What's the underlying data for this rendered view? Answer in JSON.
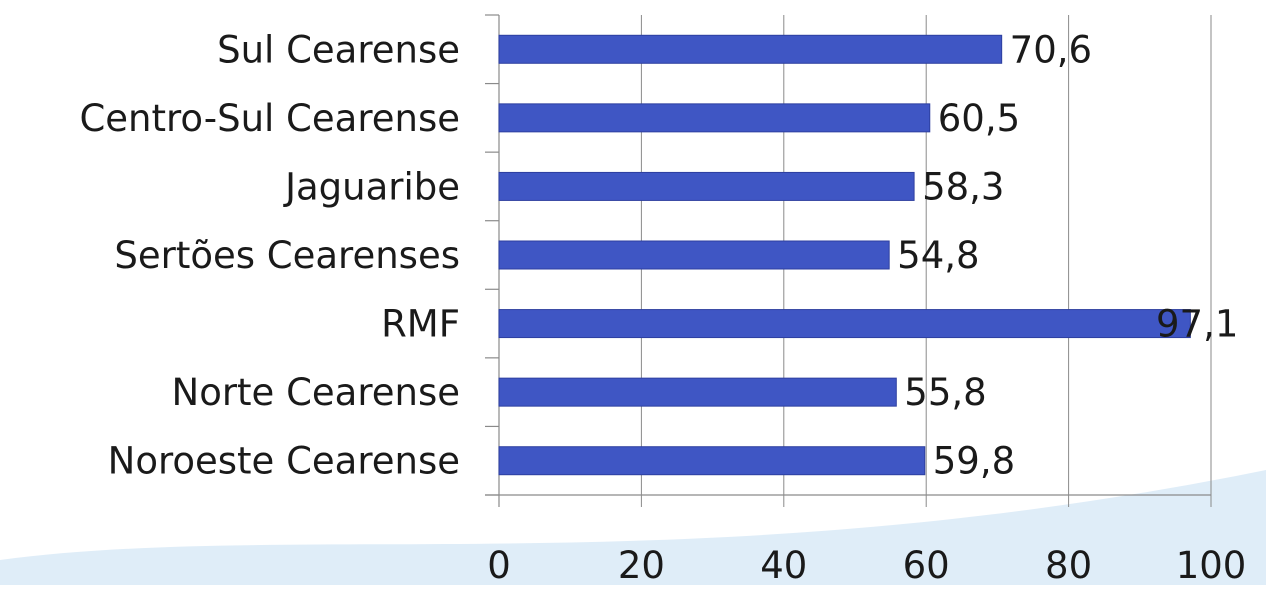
{
  "chart_data": {
    "type": "bar",
    "orientation": "horizontal",
    "categories": [
      "Sul Cearense",
      "Centro-Sul Cearense",
      "Jaguaribe",
      "Sertões Cearenses",
      "RMF",
      "Norte Cearense",
      "Noroeste Cearense"
    ],
    "values": [
      70.6,
      60.5,
      58.3,
      54.8,
      97.1,
      55.8,
      59.8
    ],
    "value_labels": [
      "70,6",
      "60,5",
      "58,3",
      "54,8",
      "97,1",
      "55,8",
      "59,8"
    ],
    "x_ticks": [
      "0",
      "20",
      "40",
      "60",
      "80",
      "100"
    ],
    "xlim": [
      0,
      100
    ],
    "title": "",
    "xlabel": "",
    "ylabel": "",
    "grid": "vertical",
    "legend": "none",
    "colors": {
      "bar": "#3f56c4",
      "bar_edge": "#2d3fa0",
      "grid": "#8a8a8a",
      "axis": "#8a8a8a",
      "background_swoosh": "#d7e8f6"
    }
  }
}
